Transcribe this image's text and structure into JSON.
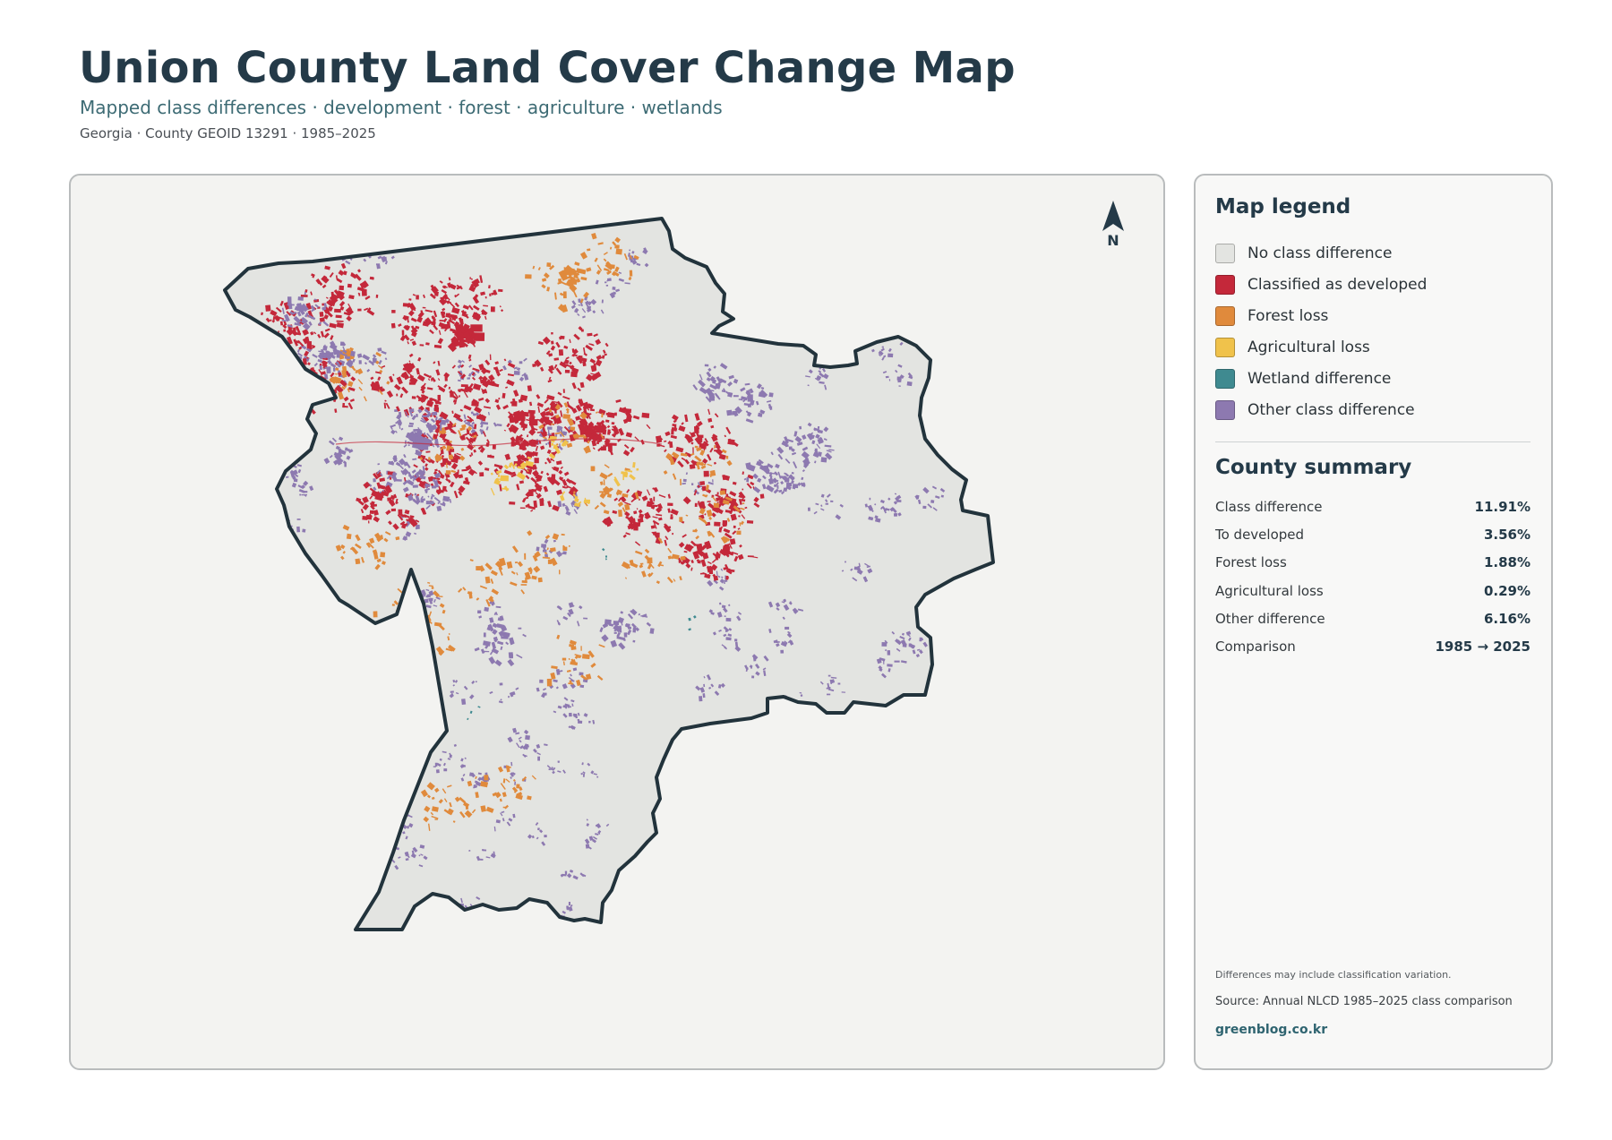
{
  "header": {
    "title": "Union County Land Cover Change Map",
    "subtitle": "Mapped class differences · development · forest · agriculture · wetlands",
    "meta": "Georgia · County GEOID 13291 · 1985–2025"
  },
  "map": {
    "north_label": "N",
    "colors": {
      "background": "#f3f3f1",
      "county_fill": "#e3e4e1",
      "county_border": "#22333c",
      "developed": "#c4283a",
      "forest_loss": "#e08a3c",
      "agricultural_loss": "#f0c24b",
      "wetland": "#3f8a90",
      "other": "#8d79b0"
    }
  },
  "legend": {
    "title": "Map legend",
    "items": [
      {
        "label": "No class difference",
        "color": "#e3e4e1"
      },
      {
        "label": "Classified as developed",
        "color": "#c4283a"
      },
      {
        "label": "Forest loss",
        "color": "#e08a3c"
      },
      {
        "label": "Agricultural loss",
        "color": "#f0c24b"
      },
      {
        "label": "Wetland difference",
        "color": "#3f8a90"
      },
      {
        "label": "Other class difference",
        "color": "#8d79b0"
      }
    ]
  },
  "summary": {
    "title": "County summary",
    "rows": [
      {
        "label": "Class difference",
        "value": "11.91%"
      },
      {
        "label": "To developed",
        "value": "3.56%"
      },
      {
        "label": "Forest loss",
        "value": "1.88%"
      },
      {
        "label": "Agricultural loss",
        "value": "0.29%"
      },
      {
        "label": "Other difference",
        "value": "6.16%"
      },
      {
        "label": "Comparison",
        "value": "1985 → 2025"
      }
    ]
  },
  "footer": {
    "note": "Differences may include classification variation.",
    "source": "Source: Annual NLCD 1985–2025 class comparison",
    "site": "greenblog.co.kr"
  }
}
